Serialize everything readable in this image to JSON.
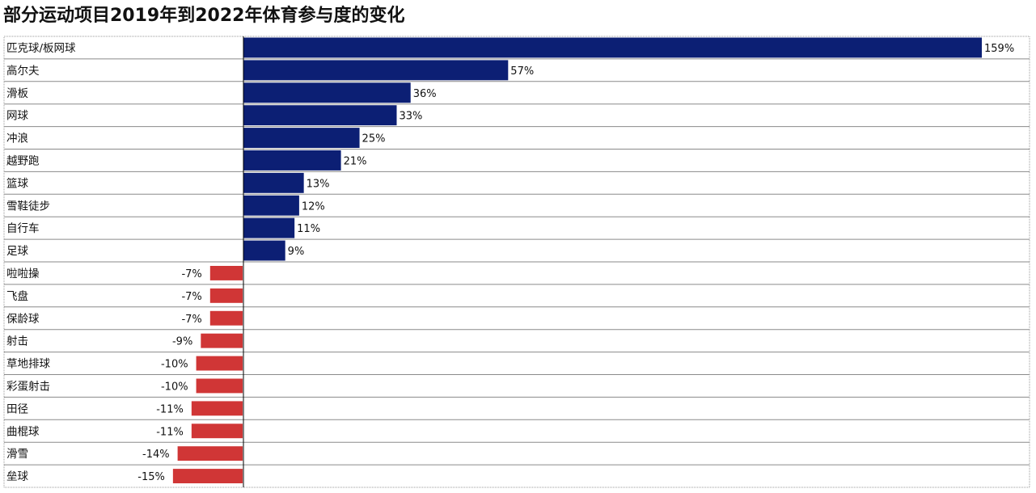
{
  "title": "部分运动项目2019年到2022年体育参与度的变化",
  "chart_data": {
    "type": "bar",
    "orientation": "horizontal",
    "title": "部分运动项目2019年到2022年体育参与度的变化",
    "categories": [
      "匹克球/板网球",
      "高尔夫",
      "滑板",
      "网球",
      "冲浪",
      "越野跑",
      "篮球",
      "雪鞋徒步",
      "自行车",
      "足球",
      "啦啦操",
      "飞盘",
      "保龄球",
      "射击",
      "草地排球",
      "彩蛋射击",
      "田径",
      "曲棍球",
      "滑雪",
      "垒球"
    ],
    "values": [
      159,
      57,
      36,
      33,
      25,
      21,
      13,
      12,
      11,
      9,
      -7,
      -7,
      -7,
      -9,
      -10,
      -10,
      -11,
      -11,
      -14,
      -15
    ],
    "value_labels": [
      "159%",
      "57%",
      "36%",
      "33%",
      "25%",
      "21%",
      "13%",
      "12%",
      "11%",
      "9%",
      "-7%",
      "-7%",
      "-7%",
      "-9%",
      "-10%",
      "-10%",
      "-11%",
      "-11%",
      "-14%",
      "-15%"
    ],
    "unit": "%",
    "xlim": [
      -15,
      159
    ],
    "positive_color": "#0c1f74",
    "negative_color": "#d03636",
    "grid": true,
    "legend": "none"
  }
}
